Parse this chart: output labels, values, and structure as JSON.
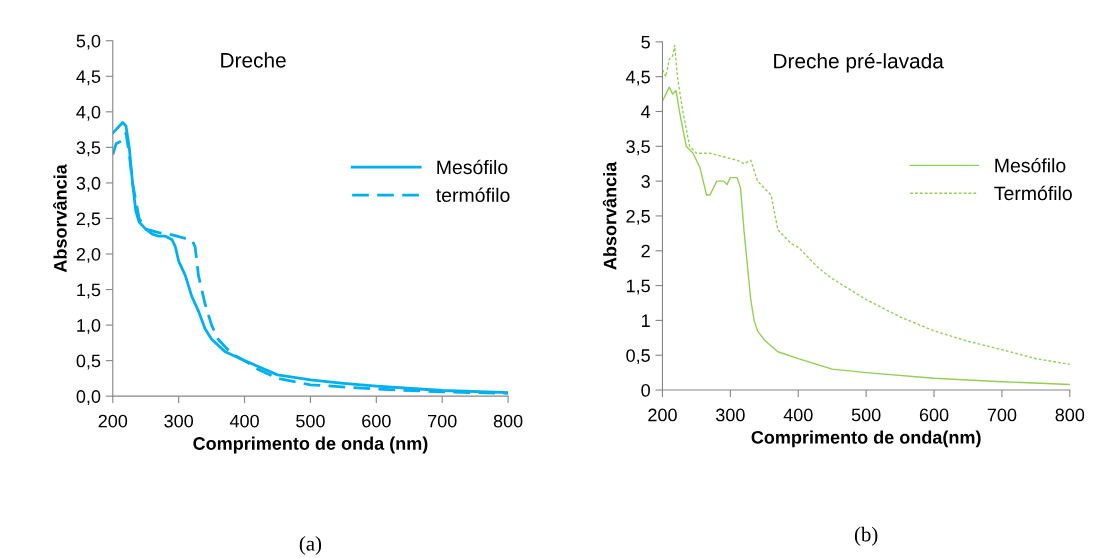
{
  "chart_data": [
    {
      "type": "line",
      "title": "Dreche",
      "xlabel": "Comprimento de onda (nm)",
      "ylabel": "Absorvância",
      "annotations": [
        "(a)"
      ],
      "legend": "right",
      "grid": false,
      "xlim": [
        200,
        800
      ],
      "xticks": [
        200,
        300,
        400,
        500,
        600,
        700,
        800
      ],
      "ylim": [
        0,
        5
      ],
      "yticks": [
        {
          "value": 0,
          "label": "0,0"
        },
        {
          "value": 0.5,
          "label": "0,5"
        },
        {
          "value": 1,
          "label": "1,0"
        },
        {
          "value": 1.5,
          "label": "1,5"
        },
        {
          "value": 2,
          "label": "2,0"
        },
        {
          "value": 2.5,
          "label": "2,5"
        },
        {
          "value": 3,
          "label": "3,0"
        },
        {
          "value": 3.5,
          "label": "3,5"
        },
        {
          "value": 4,
          "label": "4,0"
        },
        {
          "value": 4.5,
          "label": "4,5"
        },
        {
          "value": 5,
          "label": "5,0"
        }
      ],
      "series": [
        {
          "name": "Mesófilo",
          "color": "#00b0f0",
          "line_style": "solid",
          "x": [
            200,
            205,
            210,
            215,
            220,
            225,
            230,
            235,
            240,
            250,
            260,
            270,
            280,
            290,
            295,
            300,
            310,
            320,
            330,
            340,
            350,
            370,
            400,
            450,
            500,
            550,
            600,
            700,
            800
          ],
          "values": [
            3.7,
            3.75,
            3.8,
            3.85,
            3.8,
            3.5,
            3.0,
            2.6,
            2.45,
            2.35,
            2.28,
            2.25,
            2.25,
            2.2,
            2.1,
            1.9,
            1.7,
            1.4,
            1.2,
            0.95,
            0.8,
            0.63,
            0.5,
            0.3,
            0.23,
            0.18,
            0.14,
            0.08,
            0.05
          ]
        },
        {
          "name": "termófilo",
          "color": "#00b0f0",
          "line_style": "dashed",
          "x": [
            200,
            205,
            215,
            220,
            225,
            230,
            240,
            250,
            270,
            290,
            310,
            320,
            325,
            330,
            340,
            350,
            360,
            380,
            400,
            420,
            450,
            500,
            600,
            700,
            800
          ],
          "values": [
            3.4,
            3.55,
            3.6,
            3.7,
            3.4,
            3.0,
            2.5,
            2.35,
            2.3,
            2.27,
            2.22,
            2.2,
            2.1,
            1.7,
            1.3,
            1.0,
            0.8,
            0.6,
            0.5,
            0.38,
            0.25,
            0.16,
            0.1,
            0.06,
            0.04
          ]
        }
      ]
    },
    {
      "type": "line",
      "title": "Dreche pré-lavada",
      "xlabel": "Comprimento de onda(nm)",
      "ylabel": "Absorvância",
      "annotations": [
        "(b)"
      ],
      "legend": "right",
      "grid": false,
      "xlim": [
        200,
        800
      ],
      "xticks": [
        200,
        300,
        400,
        500,
        600,
        700,
        800
      ],
      "ylim": [
        0,
        5
      ],
      "yticks": [
        0,
        {
          "value": 0.5,
          "label": "0,5"
        },
        1,
        {
          "value": 1.5,
          "label": "1,5"
        },
        2,
        {
          "value": 2.5,
          "label": "2,5"
        },
        3,
        {
          "value": 3.5,
          "label": "3,5"
        },
        4,
        {
          "value": 4.5,
          "label": "4,5"
        },
        5
      ],
      "series": [
        {
          "name": "Mesófilo",
          "color": "#92d050",
          "line_style": "solid",
          "x": [
            200,
            205,
            210,
            215,
            220,
            225,
            235,
            245,
            255,
            265,
            270,
            280,
            290,
            295,
            300,
            310,
            315,
            320,
            330,
            335,
            340,
            350,
            370,
            400,
            450,
            500,
            600,
            700,
            800
          ],
          "values": [
            4.15,
            4.25,
            4.35,
            4.25,
            4.3,
            4.0,
            3.5,
            3.4,
            3.2,
            2.8,
            2.8,
            3.0,
            3.0,
            2.95,
            3.05,
            3.05,
            2.9,
            2.3,
            1.3,
            1.0,
            0.85,
            0.72,
            0.55,
            0.45,
            0.3,
            0.25,
            0.17,
            0.12,
            0.08
          ]
        },
        {
          "name": "Termófilo",
          "color": "#92d050",
          "line_style": "dotted",
          "x": [
            200,
            205,
            210,
            215,
            218,
            222,
            230,
            240,
            250,
            270,
            290,
            310,
            320,
            330,
            340,
            350,
            360,
            370,
            390,
            400,
            430,
            450,
            500,
            550,
            600,
            650,
            700,
            750,
            800
          ],
          "values": [
            4.6,
            4.5,
            4.75,
            4.8,
            4.95,
            4.5,
            4.0,
            3.5,
            3.4,
            3.4,
            3.35,
            3.3,
            3.25,
            3.3,
            3.0,
            2.9,
            2.8,
            2.3,
            2.1,
            2.05,
            1.75,
            1.6,
            1.3,
            1.05,
            0.85,
            0.7,
            0.58,
            0.45,
            0.37
          ]
        }
      ]
    }
  ]
}
